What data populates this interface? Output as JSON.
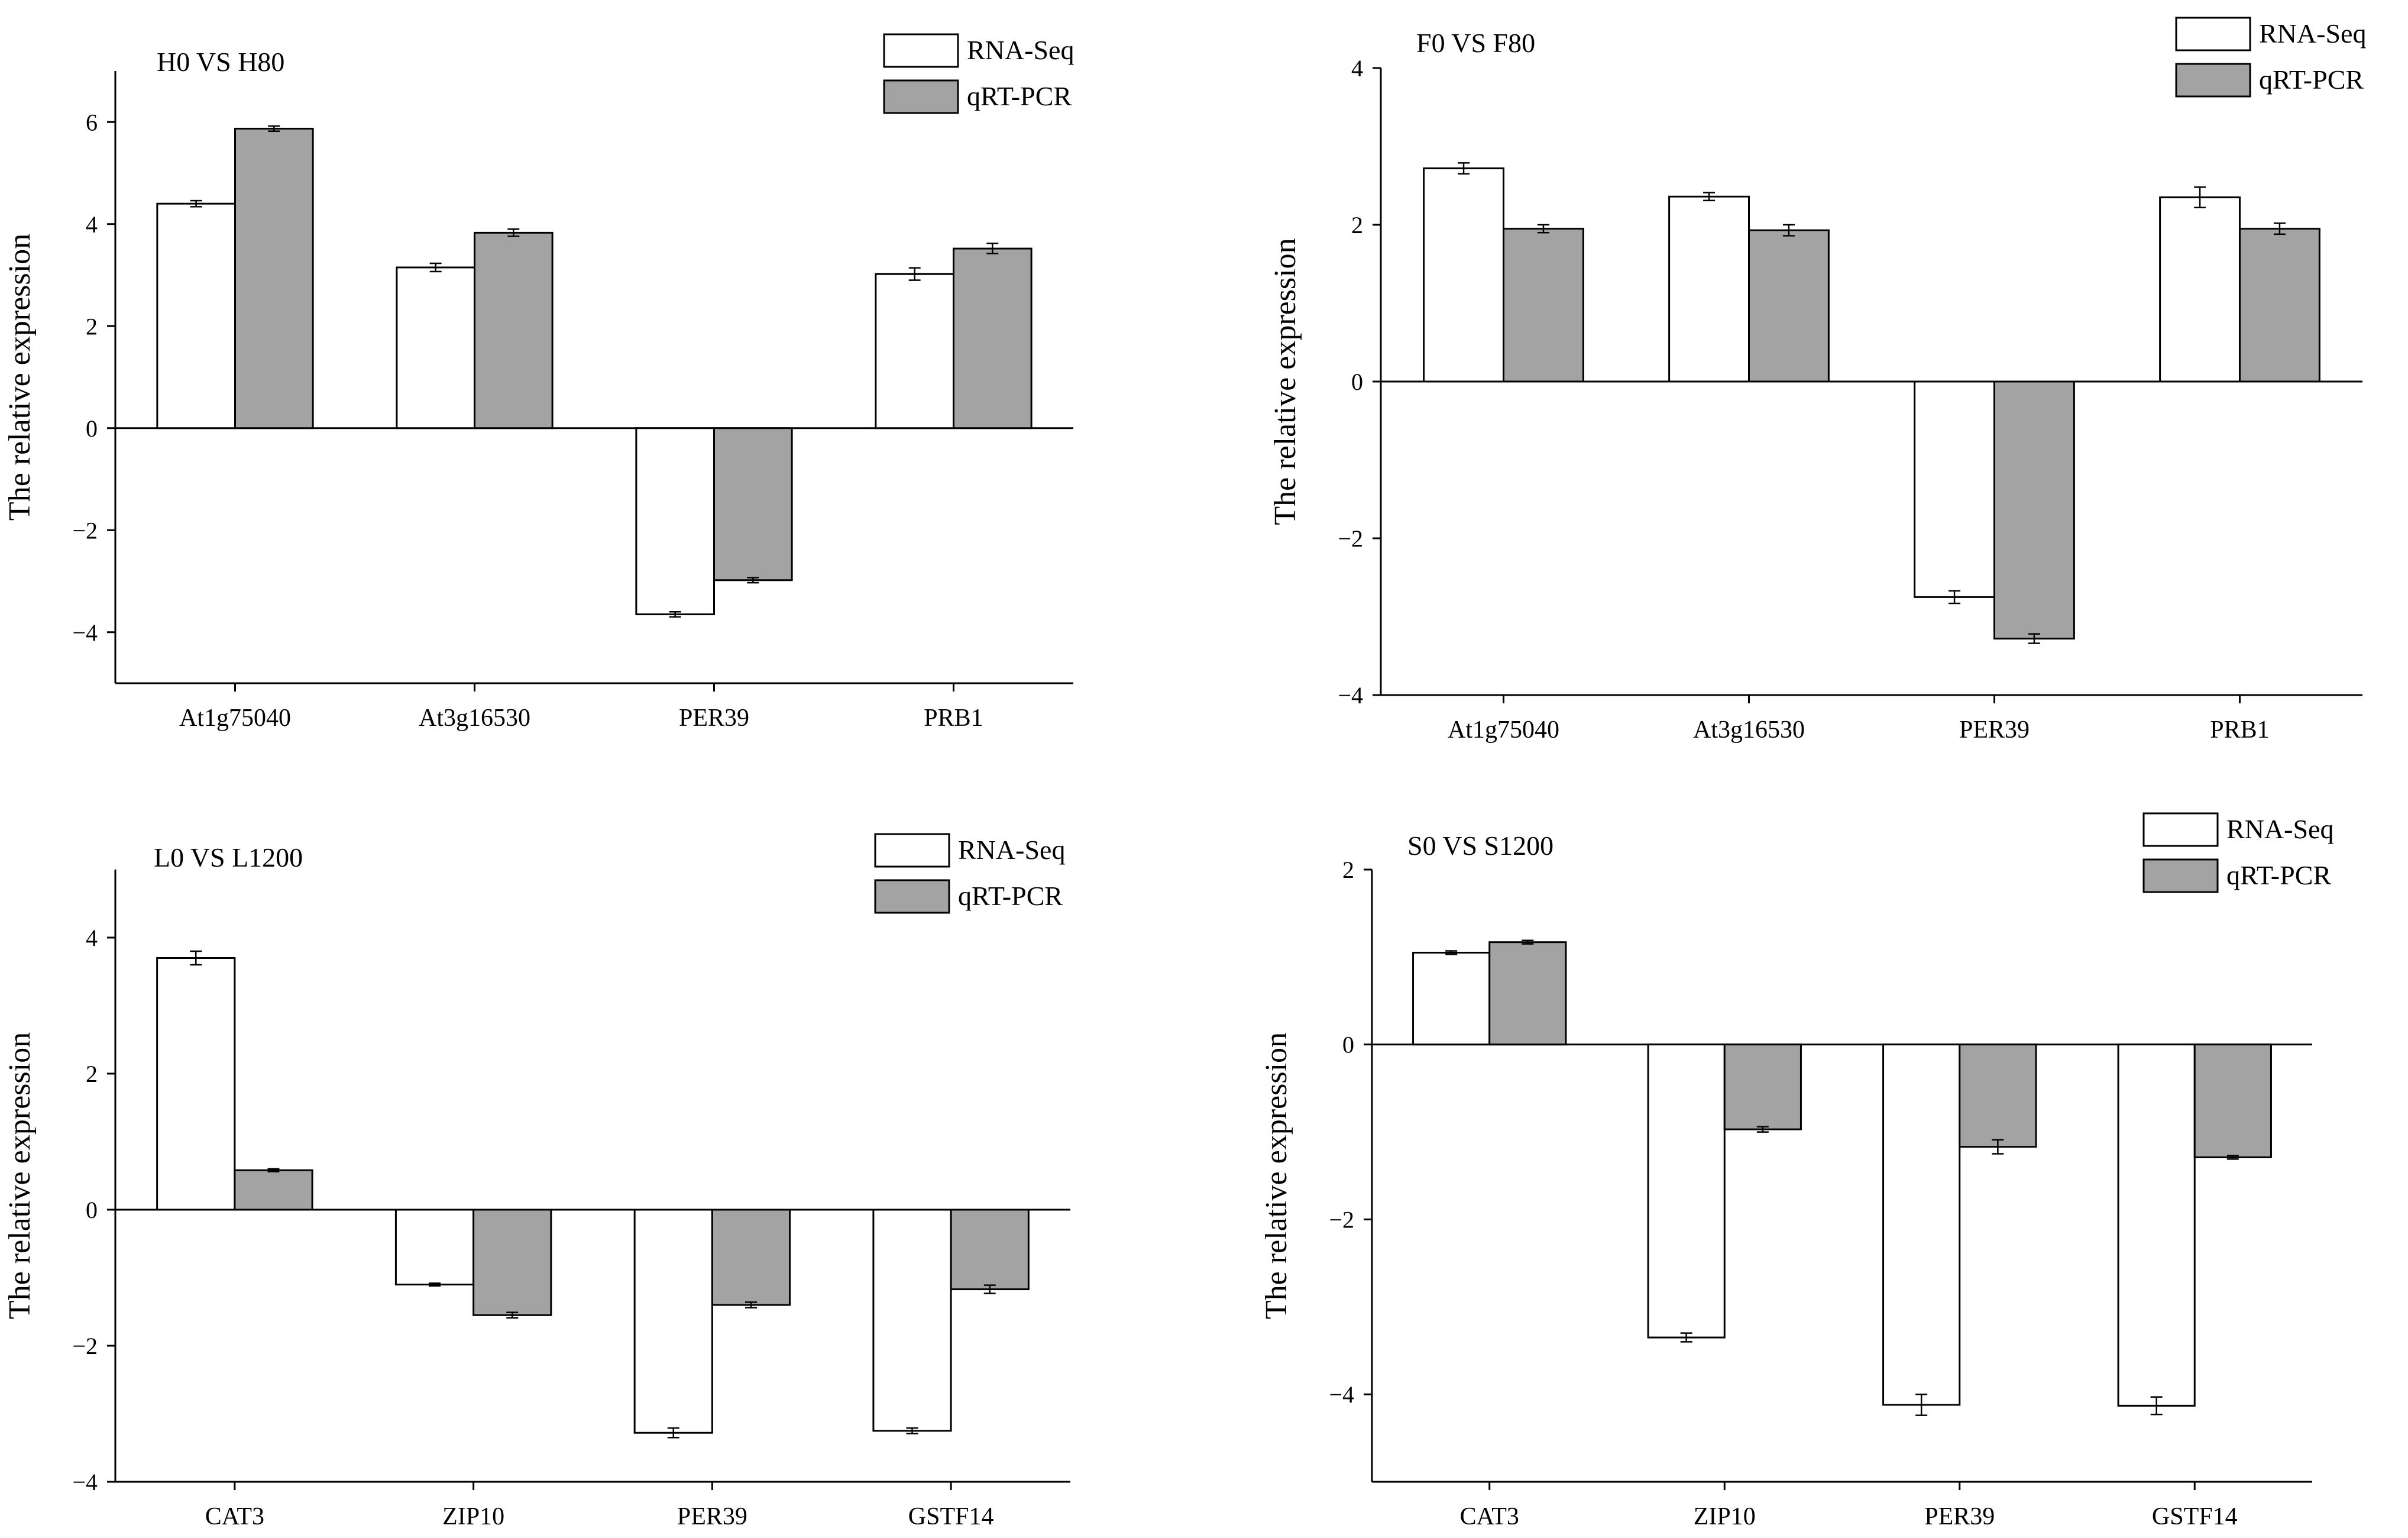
{
  "colors": {
    "rna": "#ffffff",
    "qpcr": "#a3a3a3",
    "stroke": "#000000"
  },
  "legend": [
    "RNA-Seq",
    "qRT-PCR"
  ],
  "chart_data": [
    {
      "type": "bar",
      "title": "H0 VS H80",
      "ylabel": "The relative expression",
      "xlabel": "",
      "categories": [
        "At1g75040",
        "At3g16530",
        "PER39",
        "PRB1"
      ],
      "ylim": [
        -5,
        7
      ],
      "yticks": [
        -4,
        -2,
        0,
        2,
        4,
        6
      ],
      "grid": false,
      "legend_position": "top-right",
      "series": [
        {
          "name": "RNA-Seq",
          "values": [
            4.4,
            3.15,
            -3.65,
            3.02
          ],
          "errors": [
            0.06,
            0.08,
            0.05,
            0.12
          ]
        },
        {
          "name": "qRT-PCR",
          "values": [
            5.87,
            3.83,
            -2.98,
            3.52
          ],
          "errors": [
            0.05,
            0.07,
            0.05,
            0.1
          ]
        }
      ]
    },
    {
      "type": "bar",
      "title": "F0 VS F80",
      "ylabel": "The relative expression",
      "xlabel": "",
      "categories": [
        "At1g75040",
        "At3g16530",
        "PER39",
        "PRB1"
      ],
      "ylim": [
        -4,
        4
      ],
      "yticks": [
        -4,
        -2,
        0,
        2,
        4
      ],
      "grid": false,
      "legend_position": "top-right",
      "series": [
        {
          "name": "RNA-Seq",
          "values": [
            2.72,
            2.36,
            -2.75,
            2.35
          ],
          "errors": [
            0.07,
            0.05,
            0.08,
            0.13
          ]
        },
        {
          "name": "qRT-PCR",
          "values": [
            1.95,
            1.93,
            -3.28,
            1.95
          ],
          "errors": [
            0.05,
            0.07,
            0.06,
            0.07
          ]
        }
      ]
    },
    {
      "type": "bar",
      "title": "L0 VS L1200",
      "ylabel": "The relative expression",
      "xlabel": "",
      "categories": [
        "CAT3",
        "ZIP10",
        "PER39",
        "GSTF14"
      ],
      "ylim": [
        -4,
        5
      ],
      "yticks": [
        -4,
        -2,
        0,
        2,
        4
      ],
      "grid": false,
      "legend_position": "top-right",
      "series": [
        {
          "name": "RNA-Seq",
          "values": [
            3.7,
            -1.1,
            -3.28,
            -3.25
          ],
          "errors": [
            0.1,
            0.02,
            0.07,
            0.04
          ]
        },
        {
          "name": "qRT-PCR",
          "values": [
            0.58,
            -1.55,
            -1.4,
            -1.17
          ],
          "errors": [
            0.02,
            0.04,
            0.04,
            0.06
          ]
        }
      ]
    },
    {
      "type": "bar",
      "title": "S0 VS S1200",
      "ylabel": "The relative expression",
      "xlabel": "",
      "categories": [
        "CAT3",
        "ZIP10",
        "PER39",
        "GSTF14"
      ],
      "ylim": [
        -5,
        2
      ],
      "yticks": [
        -4,
        -2,
        0,
        2
      ],
      "grid": false,
      "legend_position": "top-right",
      "series": [
        {
          "name": "RNA-Seq",
          "values": [
            1.05,
            -3.35,
            -4.12,
            -4.13
          ],
          "errors": [
            0.02,
            0.05,
            0.12,
            0.1
          ]
        },
        {
          "name": "qRT-PCR",
          "values": [
            1.17,
            -0.97,
            -1.17,
            -1.29
          ],
          "errors": [
            0.02,
            0.03,
            0.08,
            0.02
          ]
        }
      ]
    }
  ]
}
